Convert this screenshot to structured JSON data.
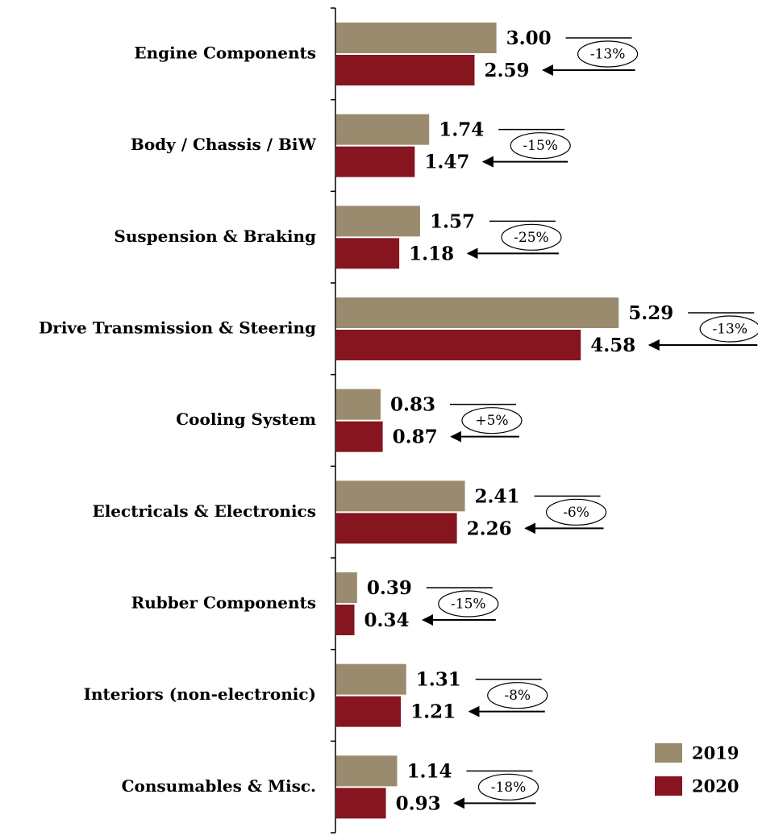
{
  "chart_data": {
    "type": "bar",
    "orientation": "horizontal",
    "categories": [
      "Engine Components",
      "Body / Chassis / BiW",
      "Suspension & Braking",
      "Drive Transmission & Steering",
      "Cooling System",
      "Electricals & Electronics",
      "Rubber Components",
      "Interiors (non-electronic)",
      "Consumables & Misc."
    ],
    "series": [
      {
        "name": "2019",
        "color": "#9b8b6e",
        "values": [
          3.0,
          1.74,
          1.57,
          5.29,
          0.83,
          2.41,
          0.39,
          1.31,
          1.14
        ],
        "value_labels": [
          "3.00",
          "1.74",
          "1.57",
          "5.29",
          "0.83",
          "2.41",
          "0.39",
          "1.31",
          "1.14"
        ]
      },
      {
        "name": "2020",
        "color": "#861520",
        "values": [
          2.59,
          1.47,
          1.18,
          4.58,
          0.87,
          2.26,
          0.34,
          1.21,
          0.93
        ],
        "value_labels": [
          "2.59",
          "1.47",
          "1.18",
          "4.58",
          "0.87",
          "2.26",
          "0.34",
          "1.21",
          "0.93"
        ]
      }
    ],
    "annotations": [
      "-13%",
      "-15%",
      "-25%",
      "-13%",
      "+5%",
      "-6%",
      "-15%",
      "-8%",
      "-18%"
    ],
    "xlim": [
      0,
      7.9
    ],
    "legend": "bottom-right"
  }
}
